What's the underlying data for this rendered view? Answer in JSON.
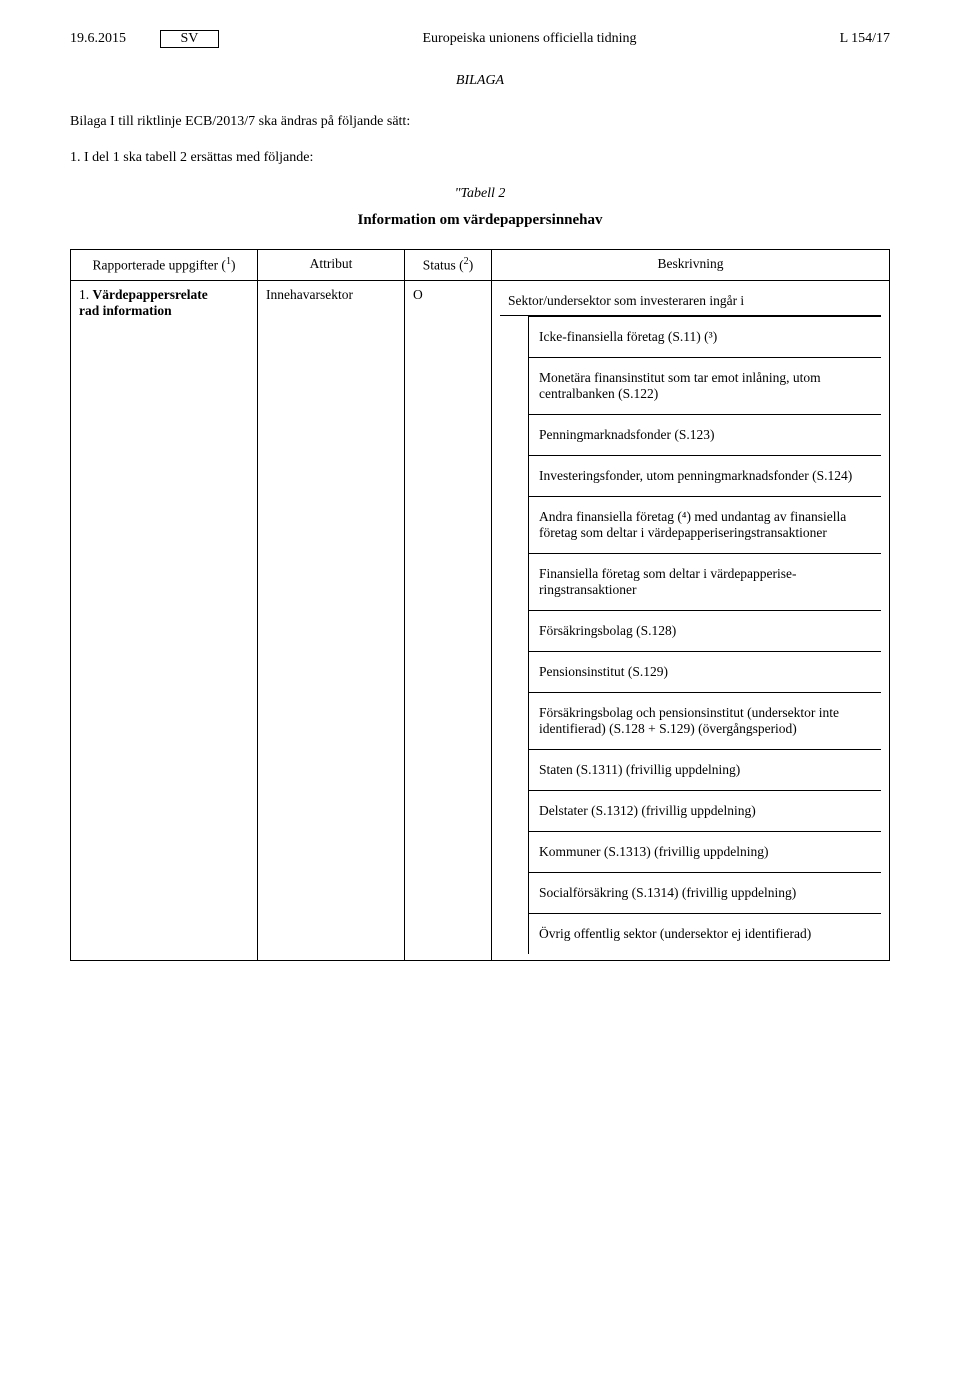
{
  "header": {
    "date": "19.6.2015",
    "lang_box": "SV",
    "journal": "Europeiska unionens officiella tidning",
    "page_ref": "L 154/17"
  },
  "annex_label": "BILAGA",
  "intro": "Bilaga I till riktlinje ECB/2013/7 ska ändras på följande sätt:",
  "section1": "1. I del 1 ska tabell 2 ersättas med följande:",
  "tabell_label": "\"Tabell 2",
  "table_title": "Information om värdepappersinnehav",
  "columns": {
    "c1": "Rapporterade uppgifter (",
    "c1_sup": "1",
    "c1_end": ")",
    "c2": "Attribut",
    "c3": "Status (",
    "c3_sup": "2",
    "c3_end": ")",
    "c4": "Beskrivning"
  },
  "row1": {
    "col1_num": "1.",
    "col1_text_a": "Värdepappersrelate",
    "col1_text_b": "rad information",
    "col2": "Innehavarsektor",
    "col3": "O",
    "sektor": "Sektor/undersektor som investeraren ingår i"
  },
  "entries": [
    "Icke-finansiella företag (S.11) (³)",
    "Monetära finansinstitut som tar emot inlåning, utom centralbanken (S.122)",
    "Penningmarknadsfonder (S.123)",
    "Investeringsfonder, utom penningmarknadsfon­der (S.124)",
    "Andra finansiella företag (⁴) med undantag av fi­nansiella företag som deltar i värdepapperise­ringstransaktioner",
    "Finansiella företag som deltar i värdepapperise­ringstransaktioner",
    "Försäkringsbolag (S.128)",
    "Pensionsinstitut (S.129)",
    "Försäkringsbolag och pensionsinstitut (undersek­tor inte identifierad) (S.128 + S.129) (övergångs­period)",
    "Staten (S.1311) (frivillig uppdelning)",
    "Delstater (S.1312) (frivillig uppdelning)",
    "Kommuner (S.1313) (frivillig uppdelning)",
    "Socialförsäkring (S.1314) (frivillig uppdelning)",
    "Övrig offentlig sektor (undersektor ej identifi­erad)"
  ]
}
